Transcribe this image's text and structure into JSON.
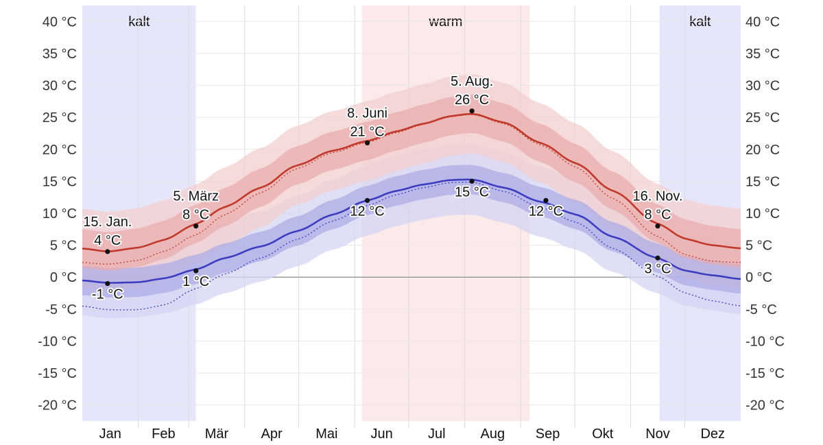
{
  "chart_data": {
    "type": "line",
    "y_unit": "°C",
    "ylim": [
      -22.5,
      42.5
    ],
    "y_ticks": [
      40,
      35,
      30,
      25,
      20,
      15,
      10,
      5,
      0,
      -5,
      -10,
      -15,
      -20
    ],
    "y_tick_labels": [
      "40 °C",
      "35 °C",
      "30 °C",
      "25 °C",
      "20 °C",
      "15 °C",
      "10 °C",
      "5 °C",
      "0 °C",
      "-5 °C",
      "-10 °C",
      "-15 °C",
      "-20 °C"
    ],
    "months": [
      "Jan",
      "Feb",
      "Mär",
      "Apr",
      "Mai",
      "Jun",
      "Jul",
      "Aug",
      "Sep",
      "Okt",
      "Nov",
      "Dez"
    ],
    "x_domain_days": [
      1,
      366
    ],
    "seasons": [
      {
        "label": "kalt",
        "start_day": 1,
        "end_day": 64,
        "color": "#e6e6fb"
      },
      {
        "label": "warm",
        "start_day": 156,
        "end_day": 249,
        "color": "#fce9e9"
      },
      {
        "label": "kalt",
        "start_day": 321,
        "end_day": 366,
        "color": "#e6e6fb"
      }
    ],
    "series": [
      {
        "key": "high",
        "color": "#c0392b",
        "band_outer_color": "#f3cfcf",
        "band_inner_color": "#e8a9a9",
        "days": [
          1,
          15,
          32,
          46,
          64,
          80,
          100,
          120,
          140,
          159,
          175,
          190,
          205,
          217,
          235,
          255,
          275,
          295,
          320,
          335,
          350,
          366
        ],
        "values": [
          4.5,
          4.0,
          4.6,
          5.8,
          8.3,
          11.0,
          14.0,
          17.5,
          19.8,
          21.3,
          22.8,
          24.0,
          25.2,
          25.6,
          24.2,
          21.0,
          17.8,
          13.5,
          8.4,
          6.0,
          5.0,
          4.5
        ],
        "inner_dev": 3.0,
        "outer_dev": 6.2,
        "normal_offset": [
          -2.2,
          -2.0,
          -2.0,
          -1.8,
          -1.7,
          -1.2,
          -0.8,
          -0.5,
          -0.3,
          -0.2,
          -0.2,
          -0.1,
          -0.1,
          -0.1,
          -0.2,
          -0.3,
          -0.6,
          -1.2,
          -2.0,
          -2.5,
          -2.5,
          -2.2
        ]
      },
      {
        "key": "low",
        "color": "#3c3cc0",
        "band_outer_color": "#d4d4f3",
        "band_inner_color": "#aaaae6",
        "days": [
          1,
          15,
          32,
          46,
          64,
          80,
          100,
          120,
          140,
          159,
          175,
          190,
          205,
          217,
          235,
          255,
          275,
          295,
          320,
          335,
          350,
          366
        ],
        "values": [
          -0.5,
          -0.9,
          -0.8,
          -0.2,
          1.2,
          3.0,
          4.8,
          7.2,
          9.8,
          12.0,
          13.5,
          14.5,
          15.2,
          15.3,
          14.0,
          11.8,
          9.8,
          6.3,
          3.0,
          1.0,
          0.3,
          -0.3
        ],
        "inner_dev": 2.3,
        "outer_dev": 5.5,
        "normal_offset": [
          -4.0,
          -4.2,
          -4.3,
          -4.2,
          -3.0,
          -2.5,
          -1.8,
          -1.3,
          -1.0,
          -0.8,
          -0.6,
          -0.5,
          -0.4,
          -0.4,
          -0.6,
          -0.9,
          -1.2,
          -1.8,
          -2.8,
          -3.5,
          -4.0,
          -4.2
        ]
      }
    ],
    "annotations": [
      {
        "series": "high",
        "day": 15,
        "value": 4,
        "text_lines": [
          "15. Jan.",
          "4 °C"
        ],
        "placement": "above"
      },
      {
        "series": "low",
        "day": 15,
        "value": -1,
        "text_lines": [
          "-1 °C"
        ],
        "placement": "below"
      },
      {
        "series": "high",
        "day": 64,
        "value": 8,
        "text_lines": [
          "5. März",
          "8 °C"
        ],
        "placement": "above"
      },
      {
        "series": "low",
        "day": 64,
        "value": 1,
        "text_lines": [
          "1 °C"
        ],
        "placement": "below"
      },
      {
        "series": "high",
        "day": 159,
        "value": 21,
        "text_lines": [
          "8. Juni",
          "21 °C"
        ],
        "placement": "above"
      },
      {
        "series": "low",
        "day": 159,
        "value": 12,
        "text_lines": [
          "12 °C"
        ],
        "placement": "below"
      },
      {
        "series": "high",
        "day": 217,
        "value": 26,
        "text_lines": [
          "5. Aug.",
          "26 °C"
        ],
        "placement": "above"
      },
      {
        "series": "low",
        "day": 217,
        "value": 15,
        "text_lines": [
          "15 °C"
        ],
        "placement": "below"
      },
      {
        "series": "low",
        "day": 258,
        "value": 12,
        "text_lines": [
          "12 °C"
        ],
        "placement": "below"
      },
      {
        "series": "high",
        "day": 320,
        "value": 8,
        "text_lines": [
          "16. Nov.",
          "8 °C"
        ],
        "placement": "above"
      },
      {
        "series": "low",
        "day": 320,
        "value": 3,
        "text_lines": [
          "3 °C"
        ],
        "placement": "below"
      }
    ],
    "grid": true,
    "zero_line": true
  }
}
